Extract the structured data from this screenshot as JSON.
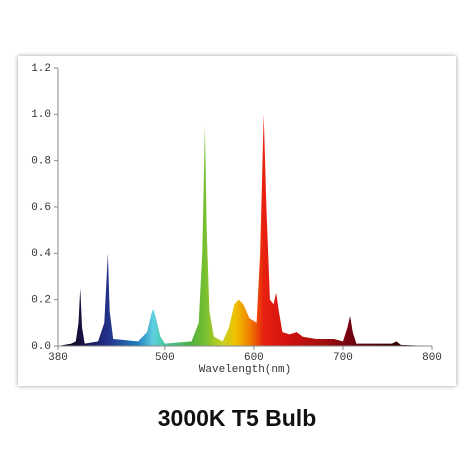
{
  "chart_data": {
    "type": "area",
    "title": "3000K T5 Bulb",
    "x_label": "Wavelength(nm)",
    "x": [
      380,
      395,
      400,
      403,
      405,
      407,
      410,
      425,
      432,
      436,
      438,
      442,
      470,
      480,
      485,
      487,
      490,
      495,
      500,
      530,
      538,
      542,
      545,
      547,
      550,
      555,
      565,
      572,
      578,
      583,
      588,
      595,
      603,
      607,
      611,
      614,
      618,
      622,
      625,
      628,
      632,
      640,
      648,
      655,
      670,
      690,
      700,
      705,
      708,
      711,
      715,
      740,
      755,
      760,
      765,
      800
    ],
    "values": [
      0,
      0.01,
      0.02,
      0.1,
      0.25,
      0.08,
      0.01,
      0.02,
      0.1,
      0.4,
      0.15,
      0.03,
      0.02,
      0.06,
      0.14,
      0.16,
      0.12,
      0.04,
      0.01,
      0.02,
      0.1,
      0.4,
      0.95,
      0.5,
      0.15,
      0.04,
      0.02,
      0.08,
      0.18,
      0.2,
      0.18,
      0.12,
      0.1,
      0.4,
      1.0,
      0.6,
      0.2,
      0.18,
      0.23,
      0.15,
      0.06,
      0.05,
      0.06,
      0.04,
      0.03,
      0.03,
      0.02,
      0.08,
      0.13,
      0.06,
      0.01,
      0.01,
      0.01,
      0.02,
      0.005,
      0
    ],
    "xlim": [
      380,
      800
    ],
    "xticks": [
      380,
      500,
      600,
      700,
      800
    ],
    "ylim": [
      0,
      1.2
    ],
    "yticks": [
      {
        "value": 0,
        "label": "0.0"
      },
      0.2,
      0.4,
      0.6,
      0.8,
      {
        "value": 1,
        "label": "1.0"
      },
      1.2
    ]
  }
}
